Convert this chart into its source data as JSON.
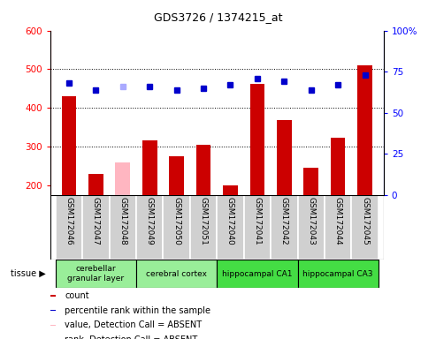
{
  "title": "GDS3726 / 1374215_at",
  "samples": [
    "GSM172046",
    "GSM172047",
    "GSM172048",
    "GSM172049",
    "GSM172050",
    "GSM172051",
    "GSM172040",
    "GSM172041",
    "GSM172042",
    "GSM172043",
    "GSM172044",
    "GSM172045"
  ],
  "counts": [
    430,
    230,
    260,
    315,
    275,
    305,
    200,
    463,
    368,
    245,
    323,
    510
  ],
  "count_colors": [
    "#cc0000",
    "#cc0000",
    "#ffb6c1",
    "#cc0000",
    "#cc0000",
    "#cc0000",
    "#cc0000",
    "#cc0000",
    "#cc0000",
    "#cc0000",
    "#cc0000",
    "#cc0000"
  ],
  "percentile_ranks": [
    68,
    64,
    66,
    66,
    64,
    65,
    67,
    71,
    69,
    64,
    67,
    73
  ],
  "rank_colors": [
    "#0000cc",
    "#0000cc",
    "#aaaaff",
    "#0000cc",
    "#0000cc",
    "#0000cc",
    "#0000cc",
    "#0000cc",
    "#0000cc",
    "#0000cc",
    "#0000cc",
    "#0000cc"
  ],
  "ylim_left": [
    175,
    600
  ],
  "ylim_right": [
    0,
    100
  ],
  "yticks_left": [
    200,
    300,
    400,
    500,
    600
  ],
  "yticks_right": [
    0,
    25,
    50,
    75,
    100
  ],
  "tissue_groups": [
    {
      "label": "cerebellar\ngranular layer",
      "start": 0,
      "end": 3,
      "color": "#99ee99"
    },
    {
      "label": "cerebral cortex",
      "start": 3,
      "end": 6,
      "color": "#99ee99"
    },
    {
      "label": "hippocampal CA1",
      "start": 6,
      "end": 9,
      "color": "#44dd44"
    },
    {
      "label": "hippocampal CA3",
      "start": 9,
      "end": 12,
      "color": "#44dd44"
    }
  ],
  "legend_items": [
    {
      "label": "count",
      "color": "#cc0000"
    },
    {
      "label": "percentile rank within the sample",
      "color": "#0000cc"
    },
    {
      "label": "value, Detection Call = ABSENT",
      "color": "#ffb6c1"
    },
    {
      "label": "rank, Detection Call = ABSENT",
      "color": "#aaaaff"
    }
  ],
  "grid_yticks": [
    300,
    400,
    500
  ],
  "bar_width": 0.55,
  "plot_bg": "#ffffff",
  "sample_box_color": "#d0d0d0",
  "title_fontsize": 9,
  "axis_fontsize": 7.5,
  "label_fontsize": 6.5,
  "legend_fontsize": 7
}
